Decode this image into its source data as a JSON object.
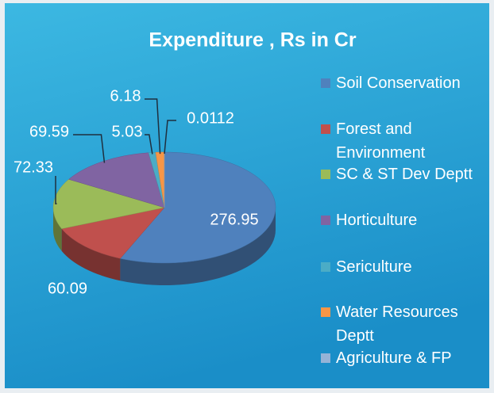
{
  "chart_data": {
    "type": "pie3d",
    "title": "Expenditure , Rs in Cr",
    "categories": [
      "Soil Conservation",
      "Forest and Environment",
      "SC & ST Dev Deptt",
      "Horticulture",
      "Sericulture",
      "Water Resources Deptt",
      "Agriculture & FP"
    ],
    "values": [
      276.95,
      60.09,
      72.33,
      69.59,
      5.03,
      6.18,
      0.0112
    ],
    "colors": [
      "#4f81bd",
      "#c0504d",
      "#9bbb59",
      "#8064a2",
      "#4bacc6",
      "#f79646",
      "#95b3d7"
    ],
    "legend": "right"
  }
}
